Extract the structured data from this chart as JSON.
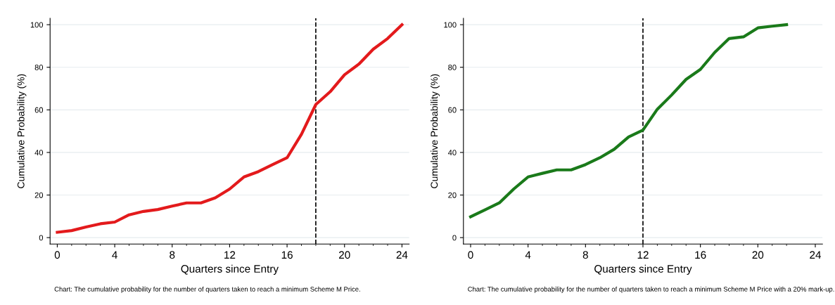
{
  "chart_data": [
    {
      "type": "line",
      "xlabel": "Quarters since Entry",
      "ylabel": "Cumulative Probability (%)",
      "annotations": [
        "Chart: The cumulative probability for the number of quarters taken to reach a minimum Scheme M Price."
      ],
      "x": [
        0,
        1,
        2,
        3,
        4,
        5,
        6,
        7,
        8,
        9,
        10,
        11,
        12,
        13,
        14,
        15,
        16,
        17,
        18,
        19,
        20,
        21,
        22,
        23,
        24
      ],
      "series": [
        {
          "color": "#e31a1c",
          "values": [
            2.5,
            3.3,
            5,
            6.5,
            7.3,
            10.7,
            12.3,
            13.2,
            14.8,
            16.3,
            16.3,
            18.7,
            22.8,
            28.5,
            31,
            34.3,
            37.5,
            48.5,
            62.5,
            68.5,
            76.5,
            81.5,
            88.5,
            93.5,
            100
          ]
        }
      ],
      "xlim": [
        -0.5,
        24.5
      ],
      "xticks": [
        0,
        4,
        8,
        12,
        16,
        20,
        24
      ],
      "ylim": [
        -3,
        103
      ],
      "yticks": [
        0,
        20,
        40,
        60,
        80,
        100
      ],
      "grid": "y",
      "ref_lines": [
        {
          "axis": "x",
          "value": 18,
          "color": "#000000",
          "line_style": "dashed"
        }
      ]
    },
    {
      "type": "line",
      "xlabel": "Quarters since Entry",
      "ylabel": "Cumulative Probability (%)",
      "annotations": [
        "Chart: The cumulative probability for the number of quarters taken to reach a minimum Scheme M Price with a 20% mark-up."
      ],
      "x": [
        0,
        1,
        2,
        3,
        4,
        5,
        6,
        7,
        8,
        9,
        10,
        11,
        12,
        13,
        14,
        15,
        16,
        17,
        18,
        19,
        20,
        21,
        22
      ],
      "series": [
        {
          "color": "#1a7a1a",
          "values": [
            9.8,
            13,
            16.3,
            22.8,
            28.5,
            30.2,
            31.8,
            31.8,
            34.3,
            37.5,
            41.5,
            47.3,
            50.5,
            60.3,
            67,
            74.3,
            79,
            87,
            93.5,
            94.3,
            98.5,
            99.3,
            100
          ]
        }
      ],
      "xlim": [
        -0.5,
        24.5
      ],
      "xticks": [
        0,
        4,
        8,
        12,
        16,
        20,
        24
      ],
      "ylim": [
        -3,
        103
      ],
      "yticks": [
        0,
        20,
        40,
        60,
        80,
        100
      ],
      "grid": "y",
      "ref_lines": [
        {
          "axis": "x",
          "value": 12,
          "color": "#000000",
          "line_style": "dashed"
        }
      ]
    }
  ]
}
